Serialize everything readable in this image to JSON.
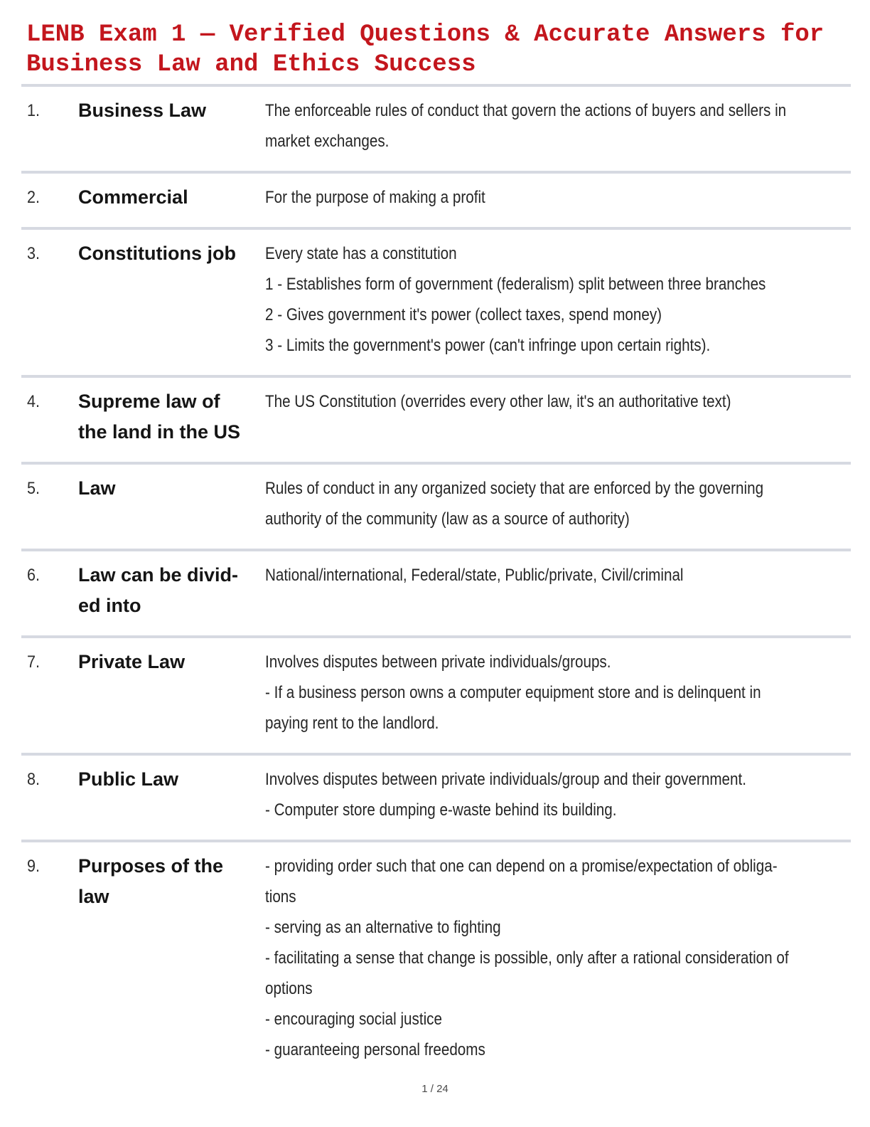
{
  "title": "LENB Exam 1 — Verified Questions & Accurate Answers for Business Law and Ethics Success",
  "colors": {
    "title_red": "#c3161d",
    "divider": "#d6d9e1",
    "term_text": "#151515",
    "body_text": "#262626",
    "footer_text": "#4b4b4b"
  },
  "footer": {
    "page_indicator": "1 / 24"
  },
  "rows": [
    {
      "number": "1.",
      "term_lines": [
        "Business Law"
      ],
      "definition_lines": [
        "The enforceable rules of conduct that govern the actions of buyers and sellers in",
        "market exchanges."
      ]
    },
    {
      "number": "2.",
      "term_lines": [
        "Commercial"
      ],
      "definition_lines": [
        "For the purpose of making a profit"
      ]
    },
    {
      "number": "3.",
      "term_lines": [
        "Constitutions job"
      ],
      "definition_lines": [
        "Every state has a constitution",
        "1 - Establishes form of government (federalism) split between three branches",
        "2 - Gives government it's power (collect taxes, spend money)",
        "3 - Limits the government's power (can't infringe upon certain rights)."
      ]
    },
    {
      "number": "4.",
      "term_lines": [
        "Supreme law of",
        "the land in the US"
      ],
      "definition_lines": [
        "The US Constitution (overrides every other law, it's an authoritative text)"
      ]
    },
    {
      "number": "5.",
      "term_lines": [
        "Law"
      ],
      "definition_lines": [
        "Rules of conduct in any organized society that are enforced by the governing",
        "authority of the community (law as a source of authority)"
      ]
    },
    {
      "number": "6.",
      "term_lines": [
        "Law can be divid-",
        "ed into"
      ],
      "definition_lines": [
        "National/international, Federal/state, Public/private, Civil/criminal"
      ]
    },
    {
      "number": "7.",
      "term_lines": [
        "Private Law"
      ],
      "definition_lines": [
        "Involves disputes between private individuals/groups.",
        "- If a business person owns a computer equipment store and is delinquent in",
        "paying rent to the landlord."
      ]
    },
    {
      "number": "8.",
      "term_lines": [
        "Public Law"
      ],
      "definition_lines": [
        "Involves disputes between private individuals/group and their government.",
        "- Computer store dumping e-waste behind its building."
      ]
    },
    {
      "number": "9.",
      "term_lines": [
        "Purposes of the",
        "law"
      ],
      "definition_lines": [
        "- providing order such that one can depend on a promise/expectation of obliga-",
        "tions",
        "- serving as an alternative to fighting",
        "- facilitating a sense that change is possible, only after a rational consideration of",
        "options",
        "- encouraging social justice",
        "- guaranteeing personal freedoms"
      ]
    }
  ]
}
